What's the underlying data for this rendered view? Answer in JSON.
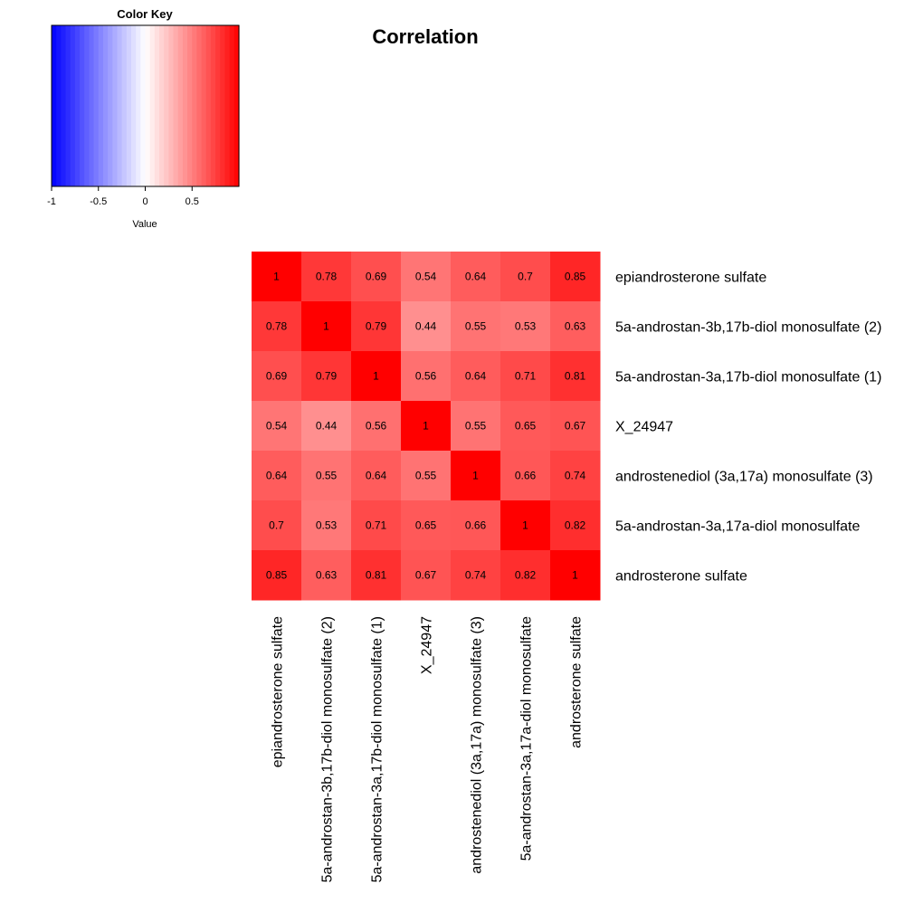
{
  "chart_data": {
    "type": "heatmap",
    "title": "Correlation",
    "labels": [
      "epiandrosterone sulfate",
      "5a-androstan-3b,17b-diol monosulfate (2)",
      "5a-androstan-3a,17b-diol monosulfate (1)",
      "X_24947",
      "androstenediol (3a,17a) monosulfate (3)",
      "5a-androstan-3a,17a-diol monosulfate",
      "androsterone sulfate"
    ],
    "matrix": [
      [
        1,
        0.78,
        0.69,
        0.54,
        0.64,
        0.7,
        0.85
      ],
      [
        0.78,
        1,
        0.79,
        0.44,
        0.55,
        0.53,
        0.63
      ],
      [
        0.69,
        0.79,
        1,
        0.56,
        0.64,
        0.71,
        0.81
      ],
      [
        0.54,
        0.44,
        0.56,
        1,
        0.55,
        0.65,
        0.67
      ],
      [
        0.64,
        0.55,
        0.64,
        0.55,
        1,
        0.66,
        0.74
      ],
      [
        0.7,
        0.53,
        0.71,
        0.65,
        0.66,
        1,
        0.82
      ],
      [
        0.85,
        0.63,
        0.81,
        0.67,
        0.74,
        0.82,
        1
      ]
    ],
    "cell_labels": [
      [
        "1",
        "0.78",
        "0.69",
        "0.54",
        "0.64",
        "0.7",
        "0.85"
      ],
      [
        "0.78",
        "1",
        "0.79",
        "0.44",
        "0.55",
        "0.53",
        "0.63"
      ],
      [
        "0.69",
        "0.79",
        "1",
        "0.56",
        "0.64",
        "0.71",
        "0.81"
      ],
      [
        "0.54",
        "0.44",
        "0.56",
        "1",
        "0.55",
        "0.65",
        "0.67"
      ],
      [
        "0.64",
        "0.55",
        "0.64",
        "0.55",
        "1",
        "0.66",
        "0.74"
      ],
      [
        "0.7",
        "0.53",
        "0.71",
        "0.65",
        "0.66",
        "1",
        "0.82"
      ],
      [
        "0.85",
        "0.63",
        "0.81",
        "0.67",
        "0.74",
        "0.82",
        "1"
      ]
    ],
    "color_scale": {
      "range": [
        -1,
        1
      ],
      "low_color": "#0000ff",
      "mid_color": "#ffffff",
      "high_color": "#ff0000"
    },
    "color_key": {
      "title": "Color Key",
      "xlabel": "Value",
      "ticks": [
        -1,
        -0.5,
        0,
        0.5
      ],
      "tick_labels": [
        "-1",
        "-0.5",
        "0",
        "0.5"
      ],
      "range": [
        -1,
        1
      ]
    }
  }
}
